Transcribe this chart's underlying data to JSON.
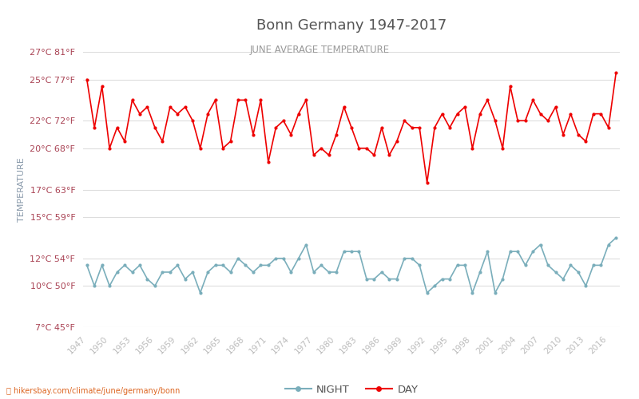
{
  "title": "Bonn Germany 1947-2017",
  "subtitle": "JUNE AVERAGE TEMPERATURE",
  "ylabel": "TEMPERATURE",
  "xlabel_url": "hikersbay.com/climate/june/germany/bonn",
  "years": [
    1947,
    1948,
    1949,
    1950,
    1951,
    1952,
    1953,
    1954,
    1955,
    1956,
    1957,
    1958,
    1959,
    1960,
    1961,
    1962,
    1963,
    1964,
    1965,
    1966,
    1967,
    1968,
    1969,
    1970,
    1971,
    1972,
    1973,
    1974,
    1975,
    1976,
    1977,
    1978,
    1979,
    1980,
    1981,
    1982,
    1983,
    1984,
    1985,
    1986,
    1987,
    1988,
    1989,
    1990,
    1991,
    1992,
    1993,
    1994,
    1995,
    1996,
    1997,
    1998,
    1999,
    2000,
    2001,
    2002,
    2003,
    2004,
    2005,
    2006,
    2007,
    2008,
    2009,
    2010,
    2011,
    2012,
    2013,
    2014,
    2015,
    2016,
    2017
  ],
  "day_temps": [
    25.0,
    21.5,
    24.5,
    20.0,
    21.5,
    20.5,
    23.5,
    22.5,
    23.0,
    21.5,
    20.5,
    23.0,
    22.5,
    23.0,
    22.0,
    20.0,
    22.5,
    23.5,
    20.0,
    20.5,
    23.5,
    23.5,
    21.0,
    23.5,
    19.0,
    21.5,
    22.0,
    21.0,
    22.5,
    23.5,
    19.5,
    20.0,
    19.5,
    21.0,
    23.0,
    21.5,
    20.0,
    20.0,
    19.5,
    21.5,
    19.5,
    20.5,
    22.0,
    21.5,
    21.5,
    17.5,
    21.5,
    22.5,
    21.5,
    22.5,
    23.0,
    20.0,
    22.5,
    23.5,
    22.0,
    20.0,
    24.5,
    22.0,
    22.0,
    23.5,
    22.5,
    22.0,
    23.0,
    21.0,
    22.5,
    21.0,
    20.5,
    22.5,
    22.5,
    21.5,
    25.5
  ],
  "night_temps": [
    11.5,
    10.0,
    11.5,
    10.0,
    11.0,
    11.5,
    11.0,
    11.5,
    10.5,
    10.0,
    11.0,
    11.0,
    11.5,
    10.5,
    11.0,
    9.5,
    11.0,
    11.5,
    11.5,
    11.0,
    12.0,
    11.5,
    11.0,
    11.5,
    11.5,
    12.0,
    12.0,
    11.0,
    12.0,
    13.0,
    11.0,
    11.5,
    11.0,
    11.0,
    12.5,
    12.5,
    12.5,
    10.5,
    10.5,
    11.0,
    10.5,
    10.5,
    12.0,
    12.0,
    11.5,
    9.5,
    10.0,
    10.5,
    10.5,
    11.5,
    11.5,
    9.5,
    11.0,
    12.5,
    9.5,
    10.5,
    12.5,
    12.5,
    11.5,
    12.5,
    13.0,
    11.5,
    11.0,
    10.5,
    11.5,
    11.0,
    10.0,
    11.5,
    11.5,
    13.0,
    13.5
  ],
  "day_color": "#ee0000",
  "night_color": "#7aaebb",
  "marker_size": 3,
  "line_width": 1.2,
  "yticks_c": [
    7,
    10,
    12,
    15,
    17,
    20,
    22,
    25,
    27
  ],
  "yticks_f": [
    45,
    50,
    54,
    59,
    63,
    68,
    72,
    77,
    81
  ],
  "ylim": [
    7,
    27
  ],
  "xtick_years": [
    1947,
    1950,
    1953,
    1956,
    1959,
    1962,
    1965,
    1968,
    1971,
    1974,
    1977,
    1980,
    1983,
    1986,
    1989,
    1992,
    1995,
    1998,
    2001,
    2004,
    2007,
    2010,
    2013,
    2016
  ],
  "bg_color": "#ffffff",
  "grid_color": "#dddddd",
  "title_color": "#555555",
  "subtitle_color": "#999999",
  "ylabel_color": "#8899aa",
  "tick_label_color": "#aa4455",
  "xtick_color": "#bbbbbb"
}
